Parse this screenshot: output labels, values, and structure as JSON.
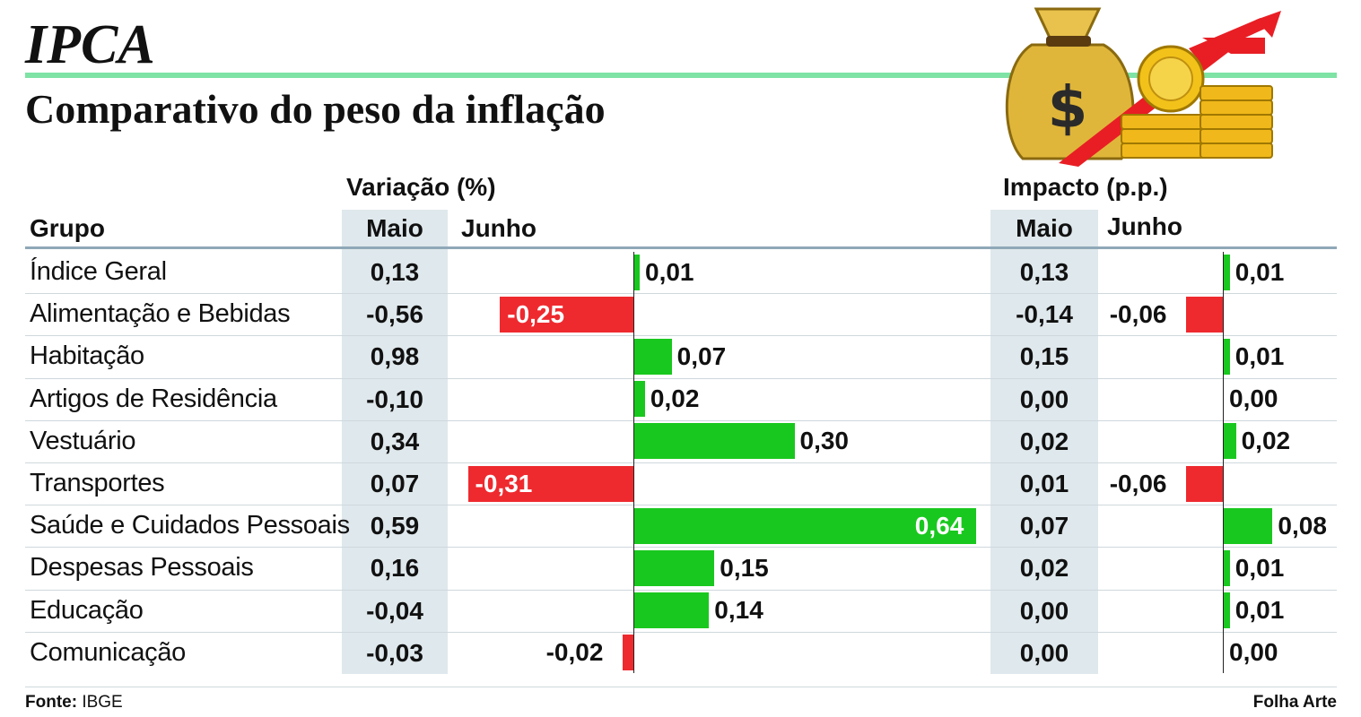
{
  "title": "IPCA",
  "subtitle": "Comparativo do peso da inflação",
  "headers": {
    "grupo": "Grupo",
    "variacao": "Variação (%)",
    "impacto": "Impacto (p.p.)",
    "maio": "Maio",
    "junho": "Junho"
  },
  "footer": {
    "fonte_label": "Fonte:",
    "fonte_value": "IBGE",
    "credit": "Folha Arte"
  },
  "colors": {
    "positive": "#19c81e",
    "negative": "#ee2a2f",
    "shade": "#dfe8ec",
    "accent": "#7ee3a5"
  },
  "icons": [
    "money-bag-icon",
    "gold-coins-icon",
    "rising-arrow-icon"
  ],
  "chart_data": {
    "type": "table",
    "columns": [
      "Grupo",
      "Variação (%) Maio",
      "Variação (%) Junho",
      "Impacto (p.p.) Maio",
      "Impacto (p.p.) Junho"
    ],
    "rows": [
      {
        "grupo": "Índice Geral",
        "var_maio": "0,13",
        "var_junho": "0,01",
        "var_junho_value": 0.01,
        "imp_maio": "0,13",
        "imp_junho": "0,01",
        "imp_junho_value": 0.01
      },
      {
        "grupo": "Alimentação e Bebidas",
        "var_maio": "-0,56",
        "var_junho": "-0,25",
        "var_junho_value": -0.25,
        "imp_maio": "-0,14",
        "imp_junho": "-0,06",
        "imp_junho_value": -0.06
      },
      {
        "grupo": "Habitação",
        "var_maio": "0,98",
        "var_junho": "0,07",
        "var_junho_value": 0.07,
        "imp_maio": "0,15",
        "imp_junho": "0,01",
        "imp_junho_value": 0.01
      },
      {
        "grupo": "Artigos de Residência",
        "var_maio": "-0,10",
        "var_junho": "0,02",
        "var_junho_value": 0.02,
        "imp_maio": "0,00",
        "imp_junho": "0,00",
        "imp_junho_value": 0.0
      },
      {
        "grupo": "Vestuário",
        "var_maio": "0,34",
        "var_junho": "0,30",
        "var_junho_value": 0.3,
        "imp_maio": "0,02",
        "imp_junho": "0,02",
        "imp_junho_value": 0.02
      },
      {
        "grupo": "Transportes",
        "var_maio": "0,07",
        "var_junho": "-0,31",
        "var_junho_value": -0.31,
        "imp_maio": "0,01",
        "imp_junho": "-0,06",
        "imp_junho_value": -0.06
      },
      {
        "grupo": "Saúde e Cuidados Pessoais",
        "var_maio": "0,59",
        "var_junho": "0,64",
        "var_junho_value": 0.64,
        "imp_maio": "0,07",
        "imp_junho": "0,08",
        "imp_junho_value": 0.08
      },
      {
        "grupo": "Despesas Pessoais",
        "var_maio": "0,16",
        "var_junho": "0,15",
        "var_junho_value": 0.15,
        "imp_maio": "0,02",
        "imp_junho": "0,01",
        "imp_junho_value": 0.01
      },
      {
        "grupo": "Educação",
        "var_maio": "-0,04",
        "var_junho": "0,14",
        "var_junho_value": 0.14,
        "imp_maio": "0,00",
        "imp_junho": "0,01",
        "imp_junho_value": 0.01
      },
      {
        "grupo": "Comunicação",
        "var_maio": "-0,03",
        "var_junho": "-0,02",
        "var_junho_value": -0.02,
        "imp_maio": "0,00",
        "imp_junho": "0,00",
        "imp_junho_value": 0.0
      }
    ]
  }
}
